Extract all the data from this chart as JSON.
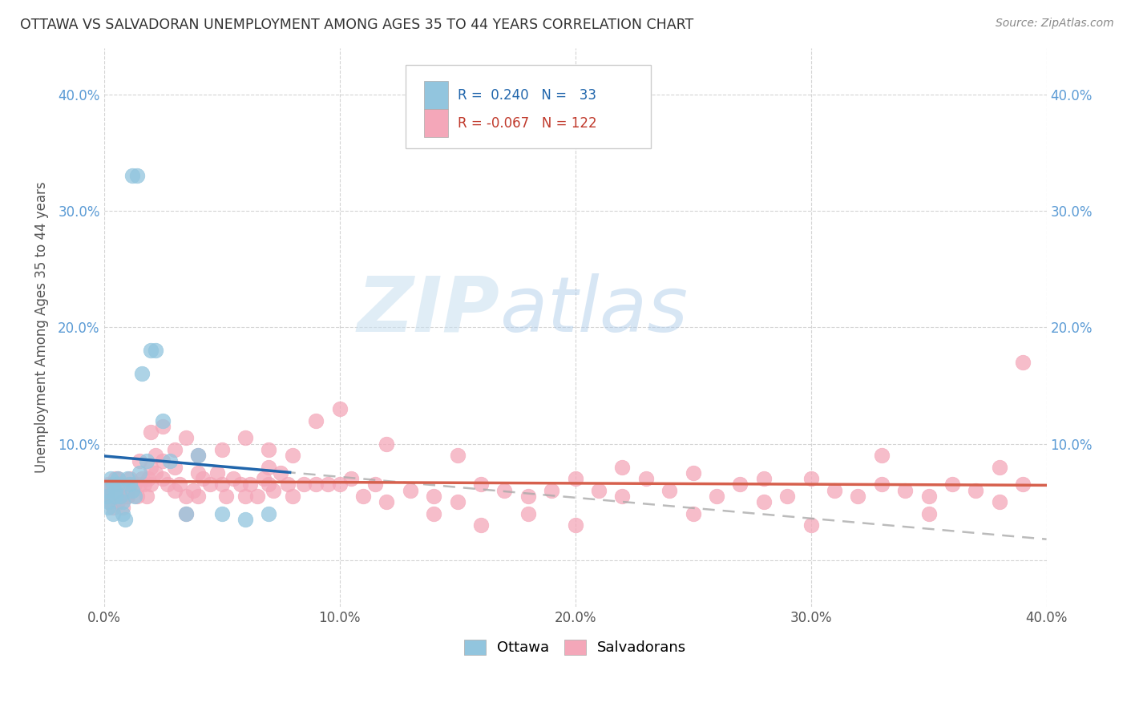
{
  "title": "OTTAWA VS SALVADORAN UNEMPLOYMENT AMONG AGES 35 TO 44 YEARS CORRELATION CHART",
  "source": "Source: ZipAtlas.com",
  "ylabel": "Unemployment Among Ages 35 to 44 years",
  "xlim": [
    0.0,
    0.4
  ],
  "ylim": [
    -0.04,
    0.44
  ],
  "xticks": [
    0.0,
    0.1,
    0.2,
    0.3,
    0.4
  ],
  "yticks": [
    0.0,
    0.1,
    0.2,
    0.3,
    0.4
  ],
  "xtick_labels": [
    "0.0%",
    "10.0%",
    "20.0%",
    "30.0%",
    "40.0%"
  ],
  "ytick_labels": [
    "",
    "10.0%",
    "20.0%",
    "30.0%",
    "40.0%"
  ],
  "ottawa_color": "#92c5de",
  "salvadoran_color": "#f4a7b9",
  "ottawa_line_color": "#2166ac",
  "salvadoran_line_color": "#d6604d",
  "tick_color_left": "#5b9bd5",
  "tick_color_right": "#5b9bd5",
  "ottawa_R": 0.24,
  "ottawa_N": 33,
  "salvadoran_R": -0.067,
  "salvadoran_N": 122,
  "watermark_zip": "ZIP",
  "watermark_atlas": "atlas",
  "background_color": "#ffffff",
  "grid_color": "#d0d0d0",
  "ottawa_x": [
    0.001,
    0.001,
    0.002,
    0.002,
    0.003,
    0.004,
    0.004,
    0.005,
    0.005,
    0.006,
    0.006,
    0.007,
    0.008,
    0.008,
    0.009,
    0.01,
    0.011,
    0.012,
    0.013,
    0.015,
    0.016,
    0.018,
    0.02,
    0.022,
    0.025,
    0.028,
    0.035,
    0.04,
    0.05,
    0.06,
    0.07,
    0.012,
    0.014
  ],
  "ottawa_y": [
    0.055,
    0.06,
    0.05,
    0.045,
    0.07,
    0.065,
    0.04,
    0.06,
    0.055,
    0.07,
    0.065,
    0.055,
    0.05,
    0.04,
    0.035,
    0.07,
    0.065,
    0.06,
    0.055,
    0.075,
    0.16,
    0.085,
    0.18,
    0.18,
    0.12,
    0.085,
    0.04,
    0.09,
    0.04,
    0.035,
    0.04,
    0.33,
    0.33
  ],
  "salv_x": [
    0.001,
    0.001,
    0.002,
    0.003,
    0.004,
    0.005,
    0.005,
    0.006,
    0.006,
    0.007,
    0.008,
    0.008,
    0.009,
    0.01,
    0.01,
    0.011,
    0.012,
    0.013,
    0.014,
    0.015,
    0.016,
    0.017,
    0.018,
    0.019,
    0.02,
    0.02,
    0.022,
    0.022,
    0.025,
    0.025,
    0.027,
    0.03,
    0.03,
    0.032,
    0.035,
    0.035,
    0.038,
    0.04,
    0.04,
    0.042,
    0.045,
    0.048,
    0.05,
    0.052,
    0.055,
    0.058,
    0.06,
    0.062,
    0.065,
    0.068,
    0.07,
    0.07,
    0.072,
    0.075,
    0.078,
    0.08,
    0.085,
    0.09,
    0.095,
    0.1,
    0.105,
    0.11,
    0.115,
    0.12,
    0.13,
    0.14,
    0.15,
    0.16,
    0.17,
    0.18,
    0.19,
    0.2,
    0.21,
    0.22,
    0.23,
    0.24,
    0.25,
    0.26,
    0.27,
    0.28,
    0.29,
    0.3,
    0.31,
    0.32,
    0.33,
    0.34,
    0.35,
    0.36,
    0.37,
    0.38,
    0.39,
    0.002,
    0.004,
    0.006,
    0.008,
    0.01,
    0.015,
    0.02,
    0.025,
    0.03,
    0.035,
    0.04,
    0.05,
    0.06,
    0.07,
    0.08,
    0.09,
    0.1,
    0.12,
    0.14,
    0.16,
    0.18,
    0.2,
    0.25,
    0.3,
    0.35,
    0.39,
    0.15,
    0.22,
    0.28,
    0.33,
    0.38
  ],
  "salv_y": [
    0.06,
    0.055,
    0.065,
    0.05,
    0.06,
    0.055,
    0.07,
    0.06,
    0.05,
    0.065,
    0.055,
    0.045,
    0.06,
    0.065,
    0.055,
    0.07,
    0.06,
    0.065,
    0.055,
    0.085,
    0.07,
    0.065,
    0.055,
    0.07,
    0.08,
    0.065,
    0.09,
    0.075,
    0.085,
    0.07,
    0.065,
    0.08,
    0.06,
    0.065,
    0.055,
    0.04,
    0.06,
    0.075,
    0.055,
    0.07,
    0.065,
    0.075,
    0.065,
    0.055,
    0.07,
    0.065,
    0.055,
    0.065,
    0.055,
    0.07,
    0.08,
    0.065,
    0.06,
    0.075,
    0.065,
    0.055,
    0.065,
    0.065,
    0.065,
    0.065,
    0.07,
    0.055,
    0.065,
    0.05,
    0.06,
    0.055,
    0.05,
    0.065,
    0.06,
    0.055,
    0.06,
    0.07,
    0.06,
    0.055,
    0.07,
    0.06,
    0.075,
    0.055,
    0.065,
    0.05,
    0.055,
    0.07,
    0.06,
    0.055,
    0.065,
    0.06,
    0.055,
    0.065,
    0.06,
    0.05,
    0.065,
    0.055,
    0.045,
    0.07,
    0.06,
    0.055,
    0.065,
    0.11,
    0.115,
    0.095,
    0.105,
    0.09,
    0.095,
    0.105,
    0.095,
    0.09,
    0.12,
    0.13,
    0.1,
    0.04,
    0.03,
    0.04,
    0.03,
    0.04,
    0.03,
    0.04,
    0.17,
    0.09,
    0.08,
    0.07,
    0.09,
    0.08
  ]
}
